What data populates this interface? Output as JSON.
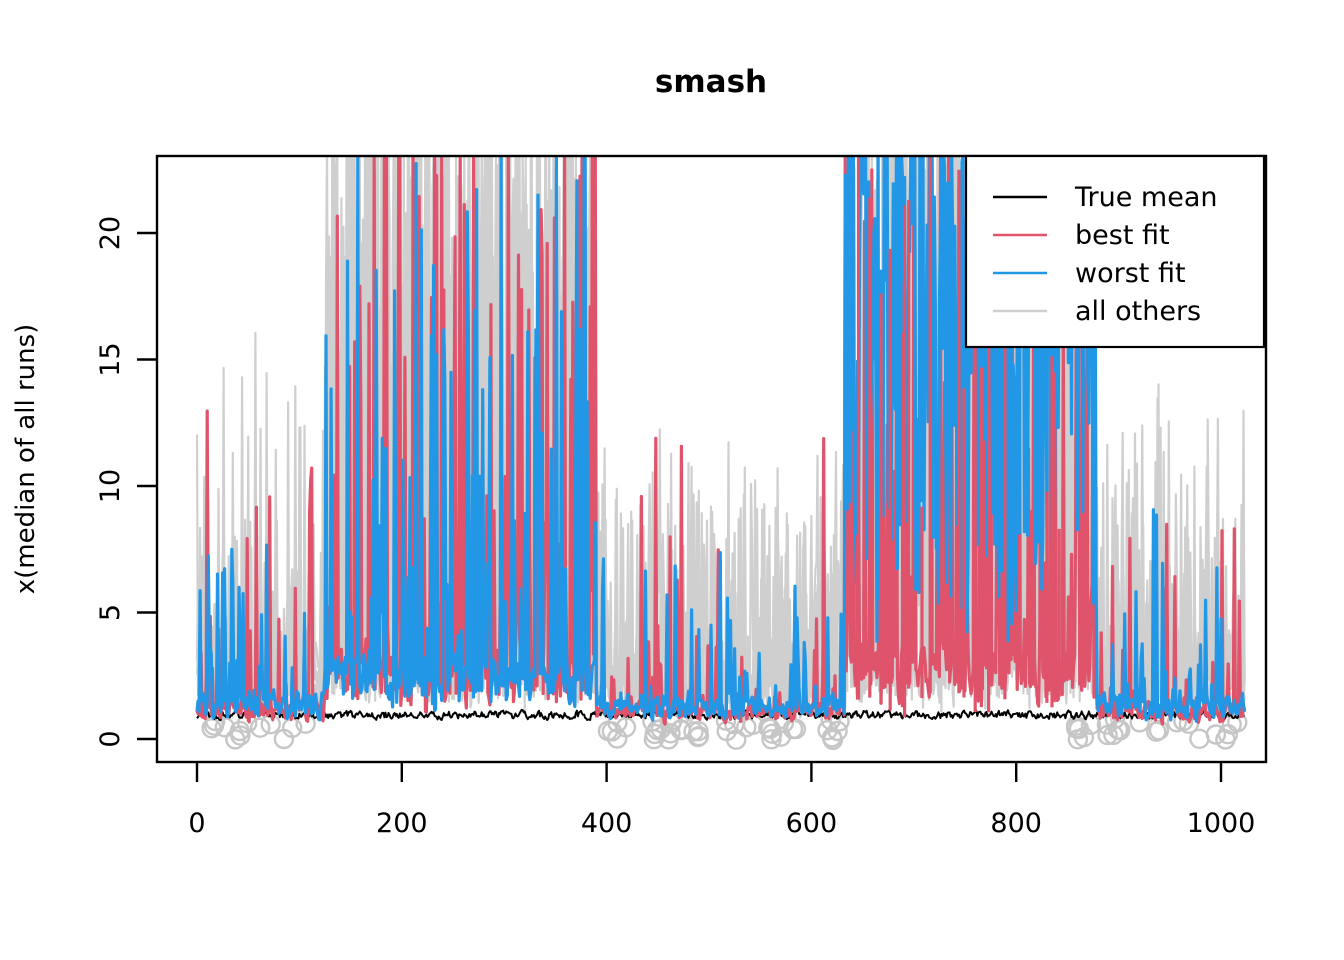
{
  "page": {
    "background": "#ffffff"
  },
  "chart_data": {
    "type": "line",
    "title": "smash",
    "xlabel": "",
    "ylabel": "x(median of all runs)",
    "xlim": [
      0,
      1024
    ],
    "ylim": [
      0,
      22.8
    ],
    "x_ticks": [
      0,
      200,
      400,
      600,
      800,
      1000
    ],
    "y_ticks": [
      0,
      5,
      10,
      15,
      20
    ],
    "grid": false,
    "n_points": 1024,
    "seed": 1337,
    "colors": {
      "true_mean": "#000000",
      "best_fit": "#DF536B",
      "worst_fit": "#2297E6",
      "all_others": "#CFCFCF",
      "points": "#C6C6C6",
      "axis": "#000000"
    },
    "legend": {
      "position": "top-right",
      "entries": [
        {
          "label": "True mean",
          "color": "#000000"
        },
        {
          "label": "best fit",
          "color": "#DF536B"
        },
        {
          "label": "worst fit",
          "color": "#2297E6"
        },
        {
          "label": "all others",
          "color": "#CFCFCF"
        }
      ]
    },
    "pattern_summary": "Noisy spiky traces over x=0..1024. Burst regions of tall clipped spikes at x~125-390 (all series) and x~633-878 (dense solid blue 'worst fit' block with red streaks). Calm regions x~0-125, 390-633, 878-1024 with baselines near y=1 and moderate spikes. Open gray circles scattered near y=0 in x ranges 0-112, 396-632, 858-1018.",
    "series_spec": [
      {
        "name": "all-others-1",
        "role": "all_others",
        "color": "#CFCFCF",
        "width": 2.2,
        "style": "line",
        "regions": [
          {
            "x0": 0,
            "x1": 125,
            "base": [
              0.4,
              3.5
            ],
            "spike_p": 0.3,
            "spike": [
              1,
              22
            ],
            "spike_pow": 3.5
          },
          {
            "x0": 125,
            "x1": 390,
            "base": [
              0.8,
              5.0
            ],
            "spike_p": 0.55,
            "spike": [
              2,
              26
            ],
            "spike_pow": 1.1
          },
          {
            "x0": 390,
            "x1": 633,
            "base": [
              0.4,
              3.5
            ],
            "spike_p": 0.35,
            "spike": [
              1,
              9
            ],
            "spike_pow": 2.2
          },
          {
            "x0": 633,
            "x1": 878,
            "base": [
              0.8,
              5.0
            ],
            "spike_p": 0.55,
            "spike": [
              2,
              26
            ],
            "spike_pow": 1.3
          },
          {
            "x0": 878,
            "x1": 1024,
            "base": [
              0.4,
              3.5
            ],
            "spike_p": 0.35,
            "spike": [
              1,
              11
            ],
            "spike_pow": 2.4
          }
        ]
      },
      {
        "name": "all-others-2",
        "role": "all_others",
        "color": "#CFCFCF",
        "width": 2.2,
        "style": "line",
        "regions": [
          {
            "x0": 0,
            "x1": 125,
            "base": [
              0.4,
              3.5
            ],
            "spike_p": 0.3,
            "spike": [
              1,
              14
            ],
            "spike_pow": 3.2
          },
          {
            "x0": 125,
            "x1": 390,
            "base": [
              0.8,
              5.0
            ],
            "spike_p": 0.55,
            "spike": [
              2,
              26
            ],
            "spike_pow": 1.1
          },
          {
            "x0": 390,
            "x1": 633,
            "base": [
              0.4,
              3.5
            ],
            "spike_p": 0.35,
            "spike": [
              1,
              9
            ],
            "spike_pow": 2.2
          },
          {
            "x0": 633,
            "x1": 878,
            "base": [
              0.8,
              5.0
            ],
            "spike_p": 0.55,
            "spike": [
              2,
              26
            ],
            "spike_pow": 1.3
          },
          {
            "x0": 878,
            "x1": 1024,
            "base": [
              0.4,
              3.5
            ],
            "spike_p": 0.35,
            "spike": [
              1,
              11
            ],
            "spike_pow": 2.4
          }
        ]
      },
      {
        "name": "all-others-3",
        "role": "all_others",
        "color": "#CFCFCF",
        "width": 2.2,
        "style": "line",
        "regions": [
          {
            "x0": 0,
            "x1": 125,
            "base": [
              0.4,
              3.5
            ],
            "spike_p": 0.28,
            "spike": [
              1,
              13
            ],
            "spike_pow": 3.0
          },
          {
            "x0": 125,
            "x1": 390,
            "base": [
              0.8,
              5.0
            ],
            "spike_p": 0.55,
            "spike": [
              2,
              26
            ],
            "spike_pow": 1.2
          },
          {
            "x0": 390,
            "x1": 633,
            "base": [
              0.4,
              3.5
            ],
            "spike_p": 0.35,
            "spike": [
              1,
              10
            ],
            "spike_pow": 2.2
          },
          {
            "x0": 633,
            "x1": 878,
            "base": [
              0.8,
              5.0
            ],
            "spike_p": 0.55,
            "spike": [
              2,
              26
            ],
            "spike_pow": 1.3
          },
          {
            "x0": 878,
            "x1": 1024,
            "base": [
              0.4,
              3.5
            ],
            "spike_p": 0.35,
            "spike": [
              1,
              12
            ],
            "spike_pow": 2.4
          }
        ]
      },
      {
        "name": "all-others-4",
        "role": "all_others",
        "color": "#CFCFCF",
        "width": 2.2,
        "style": "line",
        "regions": [
          {
            "x0": 0,
            "x1": 125,
            "base": [
              0.4,
              3.5
            ],
            "spike_p": 0.28,
            "spike": [
              1,
              12
            ],
            "spike_pow": 3.0
          },
          {
            "x0": 125,
            "x1": 390,
            "base": [
              0.8,
              5.0
            ],
            "spike_p": 0.55,
            "spike": [
              2,
              26
            ],
            "spike_pow": 1.2
          },
          {
            "x0": 390,
            "x1": 633,
            "base": [
              0.4,
              3.5
            ],
            "spike_p": 0.35,
            "spike": [
              1,
              9
            ],
            "spike_pow": 2.2
          },
          {
            "x0": 633,
            "x1": 878,
            "base": [
              0.8,
              5.0
            ],
            "spike_p": 0.55,
            "spike": [
              2,
              26
            ],
            "spike_pow": 1.3
          },
          {
            "x0": 878,
            "x1": 1024,
            "base": [
              0.4,
              3.5
            ],
            "spike_p": 0.35,
            "spike": [
              1,
              11
            ],
            "spike_pow": 2.4
          }
        ]
      },
      {
        "name": "true-mean",
        "role": "true_mean",
        "color": "#000000",
        "width": 2.0,
        "style": "line",
        "regions": [
          {
            "x0": 0,
            "x1": 1024,
            "base": [
              0.7,
              1.2
            ],
            "spike_p": 0.0,
            "spike": [
              0,
              0
            ],
            "spike_pow": 1
          }
        ]
      },
      {
        "name": "best-fit",
        "role": "best_fit",
        "color": "#DF536B",
        "width": 3.2,
        "style": "line",
        "regions": [
          {
            "x0": 0,
            "x1": 125,
            "base": [
              0.5,
              1.8
            ],
            "spike_p": 0.22,
            "spike": [
              0.5,
              13
            ],
            "spike_pow": 3.0
          },
          {
            "x0": 125,
            "x1": 390,
            "base": [
              0.7,
              4.5
            ],
            "spike_p": 0.3,
            "spike": [
              2,
              25
            ],
            "spike_pow": 1.6
          },
          {
            "x0": 390,
            "x1": 633,
            "base": [
              0.5,
              1.6
            ],
            "spike_p": 0.18,
            "spike": [
              0.5,
              11.5
            ],
            "spike_pow": 3.2
          },
          {
            "x0": 633,
            "x1": 878,
            "base": [
              0.8,
              4.5
            ],
            "spike_p": 0.4,
            "spike": [
              2,
              25
            ],
            "spike_pow": 1.5
          },
          {
            "x0": 878,
            "x1": 1024,
            "base": [
              0.5,
              1.7
            ],
            "spike_p": 0.18,
            "spike": [
              0.5,
              7.5
            ],
            "spike_pow": 2.6
          }
        ]
      },
      {
        "name": "worst-fit",
        "role": "worst_fit",
        "color": "#2297E6",
        "width": 3.2,
        "style": "line",
        "regions": [
          {
            "x0": 0,
            "x1": 125,
            "base": [
              0.5,
              2.2
            ],
            "spike_p": 0.22,
            "spike": [
              0.5,
              7
            ],
            "spike_pow": 2.2
          },
          {
            "x0": 125,
            "x1": 390,
            "base": [
              0.7,
              4.0
            ],
            "spike_p": 0.28,
            "spike": [
              2,
              23
            ],
            "spike_pow": 1.8
          },
          {
            "x0": 390,
            "x1": 633,
            "base": [
              0.6,
              1.9
            ],
            "spike_p": 0.2,
            "spike": [
              0.5,
              6.5
            ],
            "spike_pow": 2.2
          },
          {
            "x0": 633,
            "x1": 878,
            "base": [
              2.5,
              11.0
            ],
            "spike_p": 0.78,
            "spike": [
              3,
              21
            ],
            "spike_pow": 0.85
          },
          {
            "x0": 878,
            "x1": 1024,
            "base": [
              0.5,
              2.0
            ],
            "spike_p": 0.2,
            "spike": [
              0.5,
              8
            ],
            "spike_pow": 2.6
          }
        ]
      },
      {
        "name": "best-fit-streaks",
        "role": "best_fit",
        "color": "#DF536B",
        "width": 3.2,
        "style": "spikes",
        "regions": [
          {
            "x0": 633,
            "x1": 878,
            "base": [
              0.8,
              2.0
            ],
            "spike_p": 0.1,
            "spike": [
              6,
              26
            ],
            "spike_pow": 1.2
          }
        ]
      }
    ],
    "points_spec": {
      "shape": "open-circle",
      "color": "#C6C6C6",
      "radius": 9,
      "stroke_width": 2.4,
      "y_jitter": [
        -0.05,
        0.8
      ],
      "clusters": [
        {
          "x0": 2,
          "x1": 112,
          "count": 13
        },
        {
          "x0": 396,
          "x1": 452,
          "count": 9
        },
        {
          "x0": 452,
          "x1": 548,
          "count": 17
        },
        {
          "x0": 552,
          "x1": 632,
          "count": 14
        },
        {
          "x0": 858,
          "x1": 1018,
          "count": 24
        }
      ]
    }
  }
}
